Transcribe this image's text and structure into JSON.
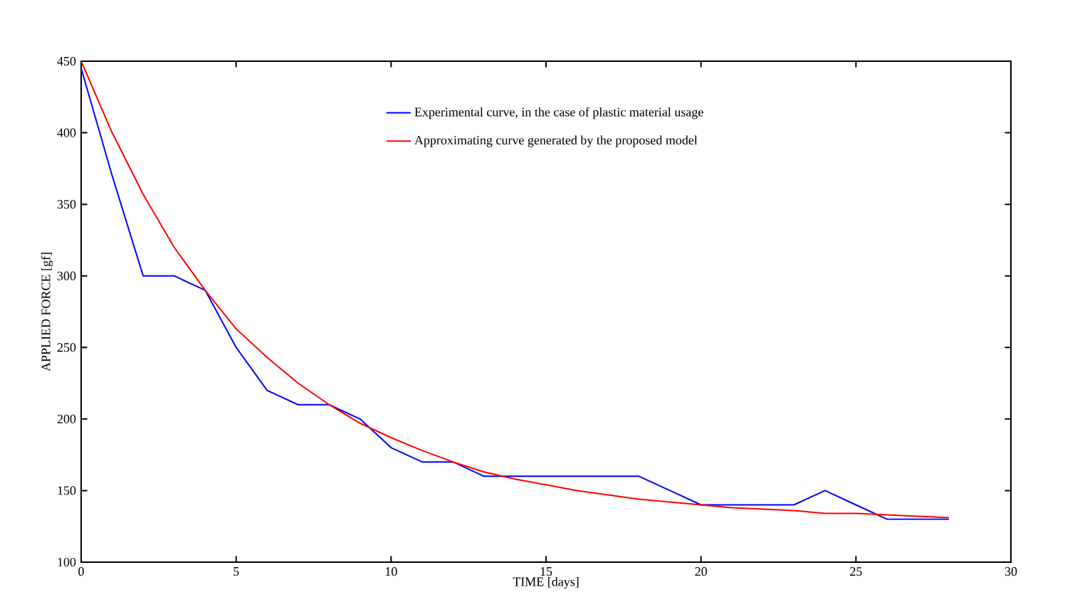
{
  "chart_data": {
    "type": "line",
    "xlabel": "TIME [days]",
    "ylabel": "APPLIED FORCE [gf]",
    "xlim": [
      0,
      30
    ],
    "ylim": [
      100,
      450
    ],
    "xticks": [
      0,
      5,
      10,
      15,
      20,
      25,
      30
    ],
    "yticks": [
      100,
      150,
      200,
      250,
      300,
      350,
      400,
      450
    ],
    "x": [
      0,
      1,
      2,
      3,
      4,
      5,
      6,
      7,
      8,
      9,
      10,
      11,
      12,
      13,
      14,
      15,
      16,
      17,
      18,
      19,
      20,
      21,
      22,
      23,
      24,
      25,
      26,
      27,
      28
    ],
    "legend": "top",
    "grid": false,
    "marker": "none",
    "line_style": "solid",
    "series": [
      {
        "name": "Experimental curve, in the case of plastic material usage",
        "color": "#0000ff",
        "values": [
          445,
          370,
          300,
          300,
          290,
          250,
          220,
          210,
          210,
          200,
          180,
          170,
          170,
          160,
          160,
          160,
          160,
          160,
          160,
          150,
          140,
          140,
          140,
          140,
          150,
          140,
          130,
          130,
          130
        ]
      },
      {
        "name": "Approximating curve generated by the proposed model",
        "color": "#ff0000",
        "values": [
          450,
          400,
          357,
          320,
          290,
          263,
          243,
          225,
          210,
          197,
          187,
          178,
          170,
          163,
          158,
          154,
          150,
          147,
          144,
          142,
          140,
          138,
          137,
          136,
          134,
          134,
          133,
          132,
          131
        ]
      }
    ]
  }
}
